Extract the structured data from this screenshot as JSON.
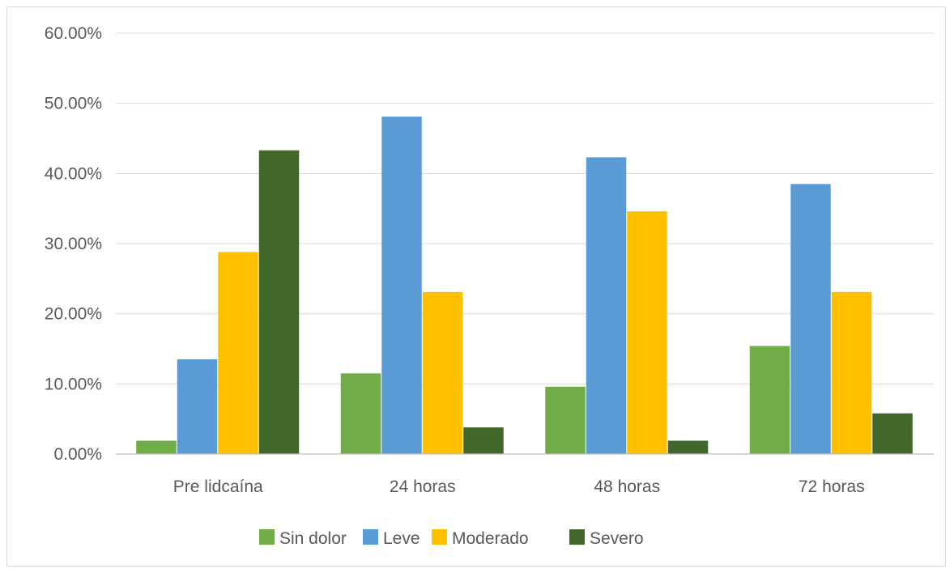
{
  "chart_data": {
    "type": "bar",
    "title": "",
    "xlabel": "",
    "ylabel": "",
    "categories": [
      "Pre lidcaína",
      "24 horas",
      "48 horas",
      "72 horas"
    ],
    "series": [
      {
        "name": "Sin dolor",
        "color": "#70ad47",
        "values": [
          1.9,
          11.5,
          9.6,
          15.4
        ]
      },
      {
        "name": "Leve",
        "color": "#5b9bd5",
        "values": [
          13.5,
          48.1,
          42.3,
          38.5
        ]
      },
      {
        "name": "Moderado",
        "color": "#ffc000",
        "values": [
          28.8,
          23.1,
          34.6,
          23.1
        ]
      },
      {
        "name": "Severo",
        "color": "#43682b",
        "values": [
          43.3,
          3.8,
          1.9,
          5.8
        ]
      }
    ],
    "ylim": [
      0,
      60
    ],
    "yticks": [
      "0.00%",
      "10.00%",
      "20.00%",
      "30.00%",
      "40.00%",
      "50.00%",
      "60.00%"
    ],
    "grid": true,
    "legend_position": "bottom"
  }
}
